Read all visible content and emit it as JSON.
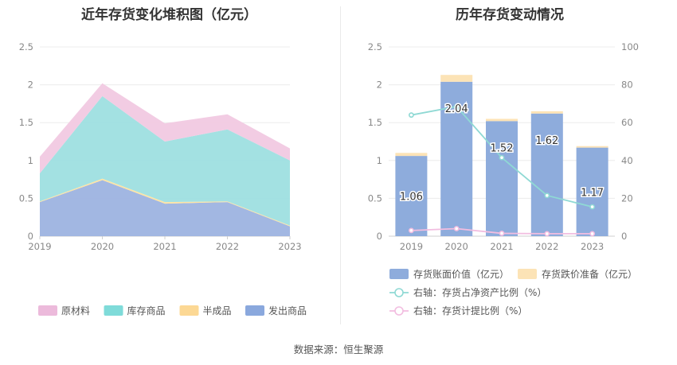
{
  "left_title": "近年存货变化堆积图（亿元）",
  "right_title": "历年存货变动情况",
  "source": "数据来源：恒生聚源",
  "chart_data": [
    {
      "type": "area",
      "stacked": true,
      "title": "近年存货变化堆积图（亿元）",
      "categories": [
        "2019",
        "2020",
        "2021",
        "2022",
        "2023"
      ],
      "ylim": [
        0,
        2.5
      ],
      "y_ticks": [
        "0",
        "0.5",
        "1",
        "1.5",
        "2",
        "2.5"
      ],
      "grid": true,
      "legend_position": "bottom",
      "series": [
        {
          "name": "发出商品",
          "values": [
            0.45,
            0.74,
            0.43,
            0.45,
            0.13
          ],
          "color": "#9db3e0"
        },
        {
          "name": "半成品",
          "values": [
            0.01,
            0.02,
            0.02,
            0.01,
            0.01
          ],
          "color": "#fde3a0"
        },
        {
          "name": "库存商品",
          "values": [
            0.37,
            1.09,
            0.8,
            0.95,
            0.86
          ],
          "color": "#9edfe0"
        },
        {
          "name": "原材料",
          "values": [
            0.22,
            0.17,
            0.24,
            0.2,
            0.16
          ],
          "color": "#f1c9e1"
        }
      ],
      "legend": [
        {
          "name": "原材料",
          "color": "#ecbadb"
        },
        {
          "name": "库存商品",
          "color": "#7fdbd9"
        },
        {
          "name": "半成品",
          "color": "#fcd894"
        },
        {
          "name": "发出商品",
          "color": "#8aa8dd"
        }
      ]
    },
    {
      "type": "bar",
      "stacked": true,
      "title": "历年存货变动情况",
      "categories": [
        "2019",
        "2020",
        "2021",
        "2022",
        "2023"
      ],
      "ylim": [
        0,
        2.5
      ],
      "y_ticks": [
        "0",
        "0.5",
        "1",
        "1.5",
        "2",
        "2.5"
      ],
      "y2lim": [
        0,
        100
      ],
      "y2_ticks": [
        "0",
        "20",
        "40",
        "60",
        "80",
        "100"
      ],
      "grid": true,
      "legend_position": "bottom",
      "series": [
        {
          "name": "存货账面价值（亿元）",
          "values": [
            1.06,
            2.04,
            1.52,
            1.62,
            1.17
          ],
          "labels": [
            "1.06",
            "2.04",
            "1.52",
            "1.62",
            "1.17"
          ],
          "color": "#8eacdc",
          "axis": "left"
        },
        {
          "name": "存货跌价准备（亿元）",
          "values": [
            0.04,
            0.09,
            0.03,
            0.03,
            0.02
          ],
          "color": "#fce3b6",
          "axis": "left"
        }
      ],
      "lines": [
        {
          "name": "右轴：存货占净资产比例（%）",
          "values": [
            64,
            68.5,
            41.5,
            21.5,
            15.5
          ],
          "color": "#8fd9d4",
          "axis": "right"
        },
        {
          "name": "右轴：存货计提比例（%）",
          "values": [
            3,
            4,
            1.5,
            1.3,
            1.3
          ],
          "color": "#f2bde0",
          "axis": "right"
        }
      ]
    }
  ]
}
